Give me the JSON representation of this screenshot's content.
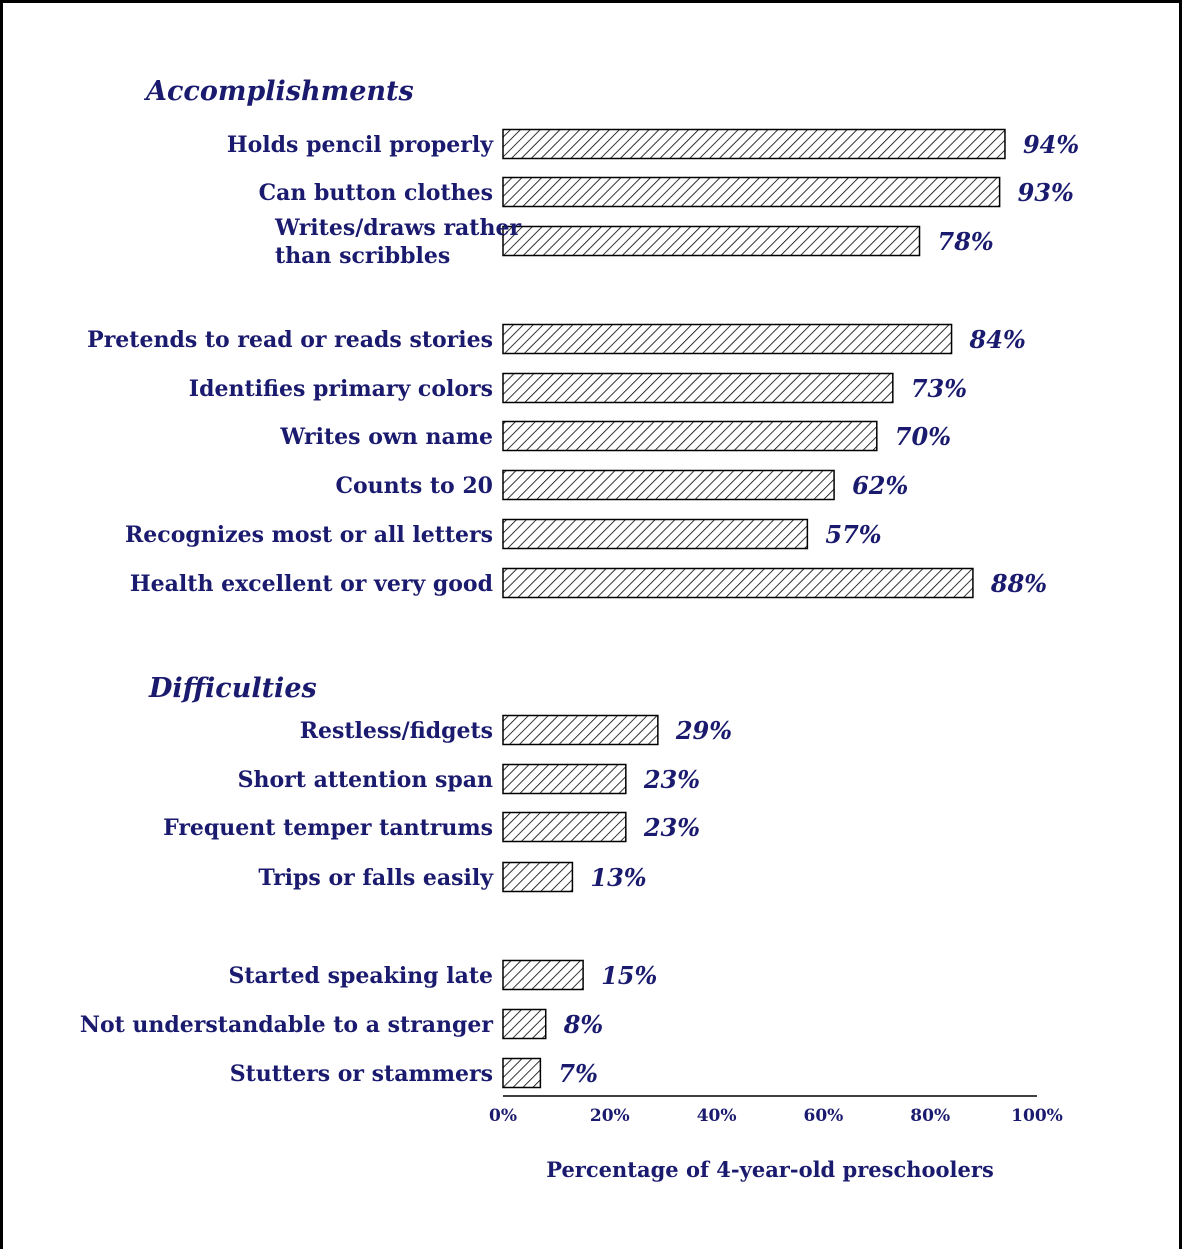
{
  "chart_data": {
    "type": "bar",
    "orientation": "horizontal",
    "xlabel": "Percentage of 4-year-old preschoolers",
    "xlim": [
      0,
      100
    ],
    "xticks": [
      "0%",
      "20%",
      "40%",
      "60%",
      "80%",
      "100%"
    ],
    "groups": [
      {
        "title": "Accomplishments",
        "items": [
          {
            "label": [
              "Holds pencil properly"
            ],
            "value": 94,
            "value_label": "94%"
          },
          {
            "label": [
              "Can button clothes"
            ],
            "value": 93,
            "value_label": "93%"
          },
          {
            "label": [
              "Writes/draws rather",
              "than scribbles"
            ],
            "value": 78,
            "value_label": "78%"
          },
          {
            "label": [
              "Pretends to read or reads stories"
            ],
            "value": 84,
            "value_label": "84%"
          },
          {
            "label": [
              "Identifies primary colors"
            ],
            "value": 73,
            "value_label": "73%"
          },
          {
            "label": [
              "Writes own name"
            ],
            "value": 70,
            "value_label": "70%"
          },
          {
            "label": [
              "Counts to 20"
            ],
            "value": 62,
            "value_label": "62%"
          },
          {
            "label": [
              "Recognizes most or all letters"
            ],
            "value": 57,
            "value_label": "57%"
          },
          {
            "label": [
              "Health excellent or very good"
            ],
            "value": 88,
            "value_label": "88%"
          }
        ]
      },
      {
        "title": "Difficulties",
        "items": [
          {
            "label": [
              "Restless/fidgets"
            ],
            "value": 29,
            "value_label": "29%"
          },
          {
            "label": [
              "Short attention span"
            ],
            "value": 23,
            "value_label": "23%"
          },
          {
            "label": [
              "Frequent temper tantrums"
            ],
            "value": 23,
            "value_label": "23%"
          },
          {
            "label": [
              "Trips or falls easily"
            ],
            "value": 13,
            "value_label": "13%"
          },
          {
            "label": [
              "Started speaking late"
            ],
            "value": 15,
            "value_label": "15%"
          },
          {
            "label": [
              "Not understandable to a stranger"
            ],
            "value": 8,
            "value_label": "8%"
          },
          {
            "label": [
              "Stutters or stammers"
            ],
            "value": 7,
            "value_label": "7%"
          }
        ]
      }
    ],
    "grid": false,
    "colors": {
      "text": "#1a1a6e",
      "bar_stroke": "#000000",
      "hatch": "#000000",
      "background": "#ffffff"
    }
  }
}
